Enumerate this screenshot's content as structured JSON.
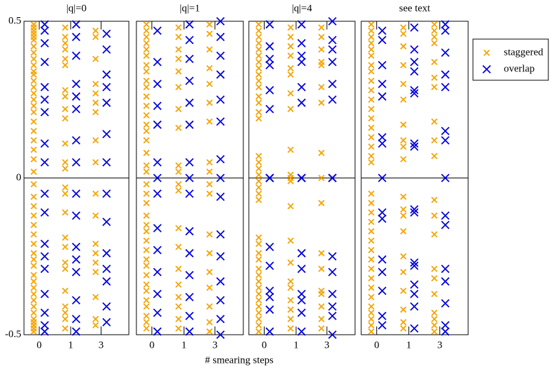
{
  "chart_data": [
    {
      "type": "strip",
      "title": "|q|=0",
      "xlabel": "# smearing steps",
      "categories": [
        "0",
        "1",
        "3"
      ],
      "ylim": [
        -0.5,
        0.5
      ],
      "yticks": [
        0.5,
        0,
        -0.5
      ],
      "legend": "upper right",
      "series": [
        {
          "name": "staggered",
          "color": "#f5a300",
          "values": [
            [
              0.49,
              0.48,
              0.47,
              0.46,
              0.45,
              0.44,
              0.42,
              0.4,
              0.38,
              0.36,
              0.34,
              0.33,
              0.31,
              0.29,
              0.27,
              0.25,
              0.23,
              0.21,
              0.18,
              0.15,
              0.12,
              0.09,
              0.06,
              0.02,
              -0.02,
              -0.06,
              -0.09,
              -0.12,
              -0.15,
              -0.18,
              -0.21,
              -0.24,
              -0.26,
              -0.28,
              -0.31,
              -0.33,
              -0.35,
              -0.37,
              -0.39,
              -0.41,
              -0.43,
              -0.45,
              -0.46,
              -0.47,
              -0.48,
              -0.49
            ],
            [
              0.48,
              0.45,
              0.43,
              0.41,
              0.38,
              0.36,
              0.28,
              0.26,
              0.22,
              0.19,
              0.11,
              0.05,
              0.03,
              -0.03,
              -0.05,
              -0.11,
              -0.19,
              -0.22,
              -0.27,
              -0.29,
              -0.36,
              -0.41,
              -0.43,
              -0.45,
              -0.48
            ],
            [
              0.47,
              0.45,
              0.38,
              0.3,
              0.27,
              0.24,
              0.21,
              0.12,
              0.05,
              -0.05,
              -0.12,
              -0.21,
              -0.24,
              -0.27,
              -0.3,
              -0.38,
              -0.45,
              -0.47
            ]
          ]
        },
        {
          "name": "overlap",
          "color": "#0000dd",
          "values": [
            [
              0.49,
              0.47,
              0.43,
              0.37,
              0.29,
              0.25,
              0.21,
              0.11,
              0.05,
              -0.05,
              -0.11,
              -0.21,
              -0.25,
              -0.29,
              -0.37,
              -0.43,
              -0.47,
              -0.49
            ],
            [
              0.49,
              0.45,
              0.39,
              0.3,
              0.26,
              0.22,
              0.12,
              0.05,
              -0.05,
              -0.12,
              -0.22,
              -0.26,
              -0.3,
              -0.39,
              -0.45,
              -0.49
            ],
            [
              0.46,
              0.41,
              0.33,
              0.29,
              0.24,
              0.14,
              0.05,
              -0.05,
              -0.14,
              -0.24,
              -0.29,
              -0.33,
              -0.41,
              -0.46
            ]
          ]
        }
      ]
    },
    {
      "type": "strip",
      "title": "|q|=1",
      "categories": [
        "0",
        "1",
        "3"
      ],
      "ylim": [
        -0.5,
        0.5
      ],
      "series": [
        {
          "color": "#f5a300",
          "values": [
            [
              0.49,
              0.47,
              0.45,
              0.43,
              0.41,
              0.39,
              0.36,
              0.34,
              0.31,
              0.29,
              0.26,
              0.23,
              0.2,
              0.17,
              0.15,
              0.12,
              0.08,
              0.04,
              0.02,
              -0.02,
              -0.05,
              -0.08,
              -0.12,
              -0.15,
              -0.17,
              -0.2,
              -0.23,
              -0.26,
              -0.28,
              -0.31,
              -0.34,
              -0.36,
              -0.39,
              -0.41,
              -0.44,
              -0.46,
              -0.48
            ],
            [
              0.48,
              0.45,
              0.41,
              0.38,
              0.34,
              0.29,
              0.22,
              0.16,
              0.04,
              0.02,
              -0.02,
              -0.04,
              -0.16,
              -0.22,
              -0.29,
              -0.34,
              -0.38,
              -0.41,
              -0.45,
              -0.48
            ],
            [
              0.49,
              0.46,
              0.41,
              0.35,
              0.3,
              0.24,
              0.18,
              0.05,
              0.02,
              -0.02,
              -0.05,
              -0.18,
              -0.24,
              -0.3,
              -0.35,
              -0.41,
              -0.46,
              -0.49
            ]
          ]
        },
        {
          "color": "#0000dd",
          "values": [
            [
              0.47,
              0.37,
              0.3,
              0.23,
              0.17,
              0.05,
              0,
              -0.05,
              -0.16,
              -0.23,
              -0.3,
              -0.37,
              -0.43,
              -0.49
            ],
            [
              0.49,
              0.44,
              0.38,
              0.31,
              0.24,
              0.17,
              0.05,
              0,
              -0.05,
              -0.17,
              -0.24,
              -0.31,
              -0.38,
              -0.44,
              -0.49
            ],
            [
              0.5,
              0.45,
              0.39,
              0.33,
              0.25,
              0.18,
              0.06,
              0,
              -0.06,
              -0.18,
              -0.25,
              -0.33,
              -0.39,
              -0.45,
              -0.5
            ]
          ]
        }
      ]
    },
    {
      "type": "strip",
      "title": "|q|=4",
      "categories": [
        "0",
        "1",
        "3"
      ],
      "ylim": [
        -0.5,
        0.5
      ],
      "series": [
        {
          "color": "#f5a300",
          "values": [
            [
              0.49,
              0.47,
              0.45,
              0.43,
              0.41,
              0.39,
              0.37,
              0.35,
              0.33,
              0.31,
              0.29,
              0.26,
              0.24,
              0.21,
              0.19,
              0.07,
              0.05,
              0.03,
              0.01,
              -0.01,
              -0.03,
              -0.05,
              -0.07,
              -0.19,
              -0.21,
              -0.24,
              -0.26,
              -0.29,
              -0.31,
              -0.33,
              -0.35,
              -0.37,
              -0.39,
              -0.41,
              -0.43,
              -0.45,
              -0.47,
              -0.49
            ],
            [
              0.48,
              0.45,
              0.42,
              0.39,
              0.35,
              0.33,
              0.27,
              0.22,
              0.09,
              0.01,
              0,
              -0.01,
              -0.09,
              -0.2,
              -0.27,
              -0.33,
              -0.35,
              -0.39,
              -0.42,
              -0.45,
              -0.48
            ],
            [
              0.48,
              0.45,
              0.41,
              0.37,
              0.36,
              0.29,
              0.24,
              0.08,
              0,
              -0.08,
              -0.24,
              -0.29,
              -0.36,
              -0.37,
              -0.41,
              -0.45,
              -0.48
            ]
          ]
        },
        {
          "color": "#0000dd",
          "values": [
            [
              0.49,
              0.42,
              0.38,
              0.36,
              0.28,
              0.22,
              0,
              0,
              0,
              0,
              -0.22,
              -0.28,
              -0.36,
              -0.38,
              -0.42,
              -0.49
            ],
            [
              0.49,
              0.43,
              0.39,
              0.37,
              0.29,
              0.24,
              0,
              0,
              0,
              0,
              -0.24,
              -0.29,
              -0.37,
              -0.39,
              -0.43,
              -0.49
            ],
            [
              0.5,
              0.44,
              0.41,
              0.37,
              0.3,
              0.25,
              0,
              0,
              0,
              0,
              -0.25,
              -0.3,
              -0.37,
              -0.41,
              -0.44,
              -0.5
            ]
          ]
        }
      ]
    },
    {
      "type": "strip",
      "title": "see text",
      "categories": [
        "0",
        "1",
        "3"
      ],
      "ylim": [
        -0.5,
        0.5
      ],
      "series": [
        {
          "color": "#f5a300",
          "values": [
            [
              0.49,
              0.47,
              0.45,
              0.43,
              0.41,
              0.39,
              0.36,
              0.34,
              0.31,
              0.28,
              0.25,
              0.22,
              0.19,
              0.16,
              0.13,
              0.1,
              0.07,
              0.05,
              -0.05,
              -0.08,
              -0.11,
              -0.14,
              -0.17,
              -0.2,
              -0.23,
              -0.26,
              -0.29,
              -0.32,
              -0.35,
              -0.38,
              -0.41,
              -0.43,
              -0.45,
              -0.47,
              -0.49
            ],
            [
              0.48,
              0.46,
              0.42,
              0.36,
              0.3,
              0.25,
              0.17,
              0.12,
              0.1,
              0.06,
              -0.06,
              -0.1,
              -0.12,
              -0.17,
              -0.25,
              -0.3,
              -0.36,
              -0.42,
              -0.46,
              -0.48
            ],
            [
              0.49,
              0.47,
              0.45,
              0.43,
              0.37,
              0.32,
              0.29,
              0.18,
              0.12,
              0.07,
              -0.07,
              -0.12,
              -0.18,
              -0.29,
              -0.32,
              -0.37,
              -0.43,
              -0.45,
              -0.47,
              -0.49
            ]
          ]
        },
        {
          "color": "#0000dd",
          "values": [
            [
              0.47,
              0.44,
              0.36,
              0.3,
              0.26,
              0.13,
              0.11,
              0,
              -0.11,
              -0.13,
              -0.26,
              -0.3,
              -0.36,
              -0.44,
              -0.47
            ],
            [
              0.48,
              0.41,
              0.37,
              0.34,
              0.28,
              0.27,
              0.11,
              0.1,
              -0.1,
              -0.11,
              -0.27,
              -0.28,
              -0.34,
              -0.37,
              -0.41,
              -0.48
            ],
            [
              0.49,
              0.47,
              0.4,
              0.33,
              0.29,
              0.15,
              0.12,
              0,
              -0.12,
              -0.15,
              -0.29,
              -0.33,
              -0.4,
              -0.47,
              -0.49
            ]
          ]
        }
      ]
    }
  ]
}
